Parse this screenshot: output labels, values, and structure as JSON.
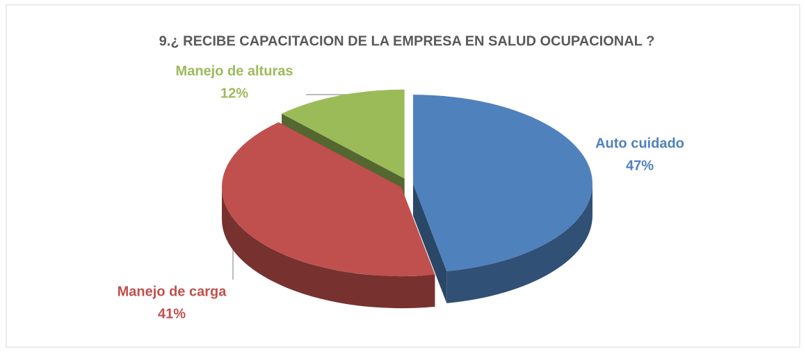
{
  "chart_data": {
    "type": "pie",
    "title": "9.¿ RECIBE CAPACITACION DE LA EMPRESA EN SALUD OCUPACIONAL ?",
    "categories": [
      "Auto cuidado",
      "Manejo de carga",
      "Manejo de alturas"
    ],
    "values": [
      47,
      41,
      12
    ],
    "value_labels": [
      "47%",
      "41%",
      "12%"
    ],
    "colors": [
      "#4f81bd",
      "#c0504d",
      "#9bbb59"
    ]
  }
}
